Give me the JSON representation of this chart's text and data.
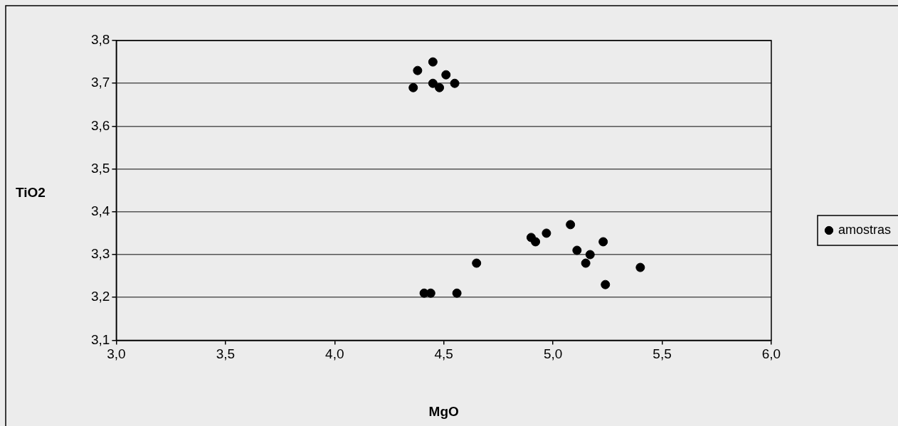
{
  "chart_data": {
    "type": "scatter",
    "xlabel": "MgO",
    "ylabel": "TiO2",
    "xlim": [
      3.0,
      6.0
    ],
    "xticks": [
      {
        "value": 3.0,
        "label": "3,0"
      },
      {
        "value": 3.5,
        "label": "3,5"
      },
      {
        "value": 4.0,
        "label": "4,0"
      },
      {
        "value": 4.5,
        "label": "4,5"
      },
      {
        "value": 5.0,
        "label": "5,0"
      },
      {
        "value": 5.5,
        "label": "5,5"
      },
      {
        "value": 6.0,
        "label": "6,0"
      }
    ],
    "ylim": [
      3.1,
      3.8
    ],
    "yticks": [
      {
        "value": 3.1,
        "label": "3,1"
      },
      {
        "value": 3.2,
        "label": "3,2"
      },
      {
        "value": 3.3,
        "label": "3,3"
      },
      {
        "value": 3.4,
        "label": "3,4"
      },
      {
        "value": 3.5,
        "label": "3,5"
      },
      {
        "value": 3.6,
        "label": "3,6"
      },
      {
        "value": 3.7,
        "label": "3,7"
      },
      {
        "value": 3.8,
        "label": "3,8"
      }
    ],
    "grid": "y",
    "legend": "right",
    "marker": "circle",
    "series": [
      {
        "name": "amostras",
        "color": "#000000",
        "x": [
          4.36,
          4.38,
          4.45,
          4.45,
          4.51,
          4.48,
          4.55,
          4.41,
          4.44,
          4.56,
          4.65,
          4.9,
          4.92,
          4.97,
          5.08,
          5.11,
          5.17,
          5.15,
          5.23,
          5.24,
          5.4
        ],
        "values": [
          3.69,
          3.73,
          3.75,
          3.7,
          3.72,
          3.69,
          3.7,
          3.21,
          3.21,
          3.21,
          3.28,
          3.34,
          3.33,
          3.35,
          3.37,
          3.31,
          3.3,
          3.28,
          3.33,
          3.23,
          3.27
        ]
      }
    ]
  }
}
